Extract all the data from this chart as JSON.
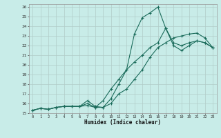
{
  "xlabel": "Humidex (Indice chaleur)",
  "bg_color": "#c8ece8",
  "grid_color": "#b0ccc8",
  "line_color": "#1a6b5a",
  "xlim": [
    -0.5,
    23.5
  ],
  "ylim": [
    15,
    26.3
  ],
  "xticks": [
    0,
    1,
    2,
    3,
    4,
    5,
    6,
    7,
    8,
    9,
    10,
    11,
    12,
    13,
    14,
    15,
    16,
    17,
    18,
    19,
    20,
    21,
    22,
    23
  ],
  "yticks": [
    15,
    16,
    17,
    18,
    19,
    20,
    21,
    22,
    23,
    24,
    25,
    26
  ],
  "line1_x": [
    0,
    1,
    2,
    3,
    4,
    5,
    6,
    7,
    8,
    9,
    10,
    11,
    12,
    13,
    14,
    15,
    16,
    17,
    18,
    19,
    20,
    21,
    22,
    23
  ],
  "line1_y": [
    15.3,
    15.5,
    15.4,
    15.6,
    15.7,
    15.7,
    15.7,
    16.3,
    15.7,
    15.6,
    16.5,
    18.0,
    19.5,
    23.2,
    24.9,
    25.4,
    26.0,
    23.8,
    22.3,
    22.0,
    22.3,
    22.5,
    22.3,
    21.8
  ],
  "line2_x": [
    0,
    1,
    2,
    3,
    4,
    5,
    6,
    7,
    8,
    9,
    10,
    11,
    12,
    13,
    14,
    15,
    16,
    17,
    18,
    19,
    20,
    21,
    22,
    23
  ],
  "line2_y": [
    15.3,
    15.5,
    15.4,
    15.6,
    15.7,
    15.7,
    15.7,
    16.0,
    15.6,
    16.3,
    17.5,
    18.5,
    19.5,
    20.3,
    21.0,
    21.8,
    22.3,
    23.8,
    22.0,
    21.5,
    22.0,
    22.5,
    22.3,
    21.8
  ],
  "line3_x": [
    0,
    1,
    2,
    3,
    4,
    5,
    6,
    7,
    8,
    9,
    10,
    11,
    12,
    13,
    14,
    15,
    16,
    17,
    18,
    19,
    20,
    21,
    22,
    23
  ],
  "line3_y": [
    15.3,
    15.5,
    15.4,
    15.6,
    15.7,
    15.7,
    15.7,
    15.8,
    15.6,
    15.6,
    16.0,
    17.0,
    17.5,
    18.5,
    19.5,
    20.8,
    21.8,
    22.3,
    22.8,
    23.0,
    23.2,
    23.3,
    22.8,
    21.8
  ]
}
